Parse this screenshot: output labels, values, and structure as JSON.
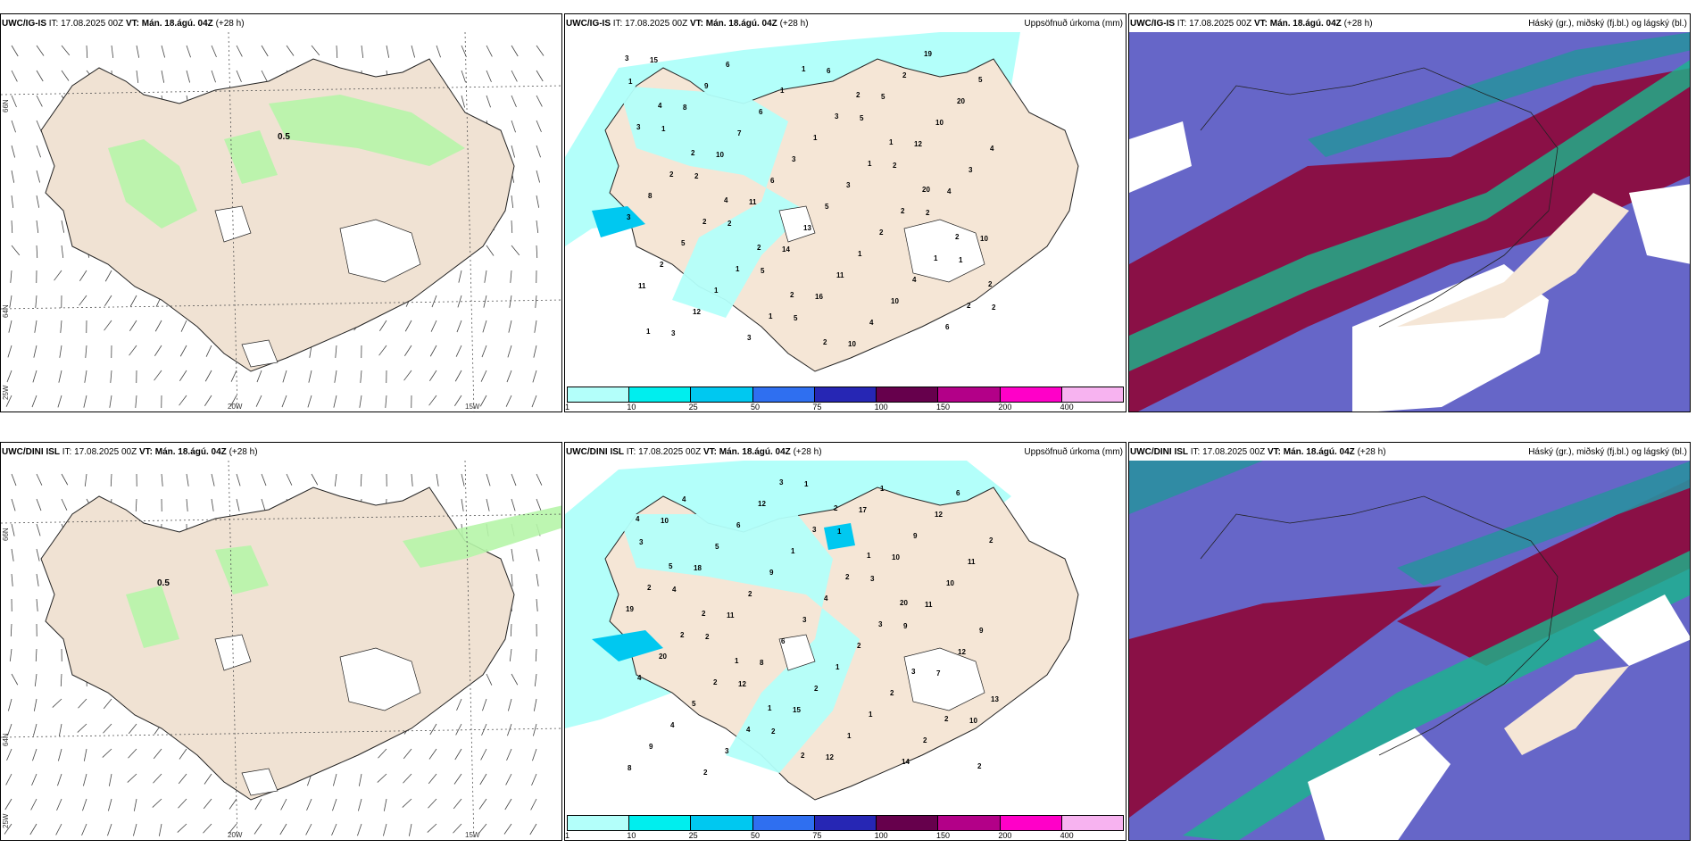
{
  "common": {
    "init": "IT: 17.08.2025 00Z",
    "vt": "VT: Mán. 18.ágú. 04Z",
    "lead": "(+28 h)"
  },
  "panels": [
    {
      "model": "UWC/IG-IS",
      "right_title": "",
      "contour_label": "0.5"
    },
    {
      "model": "UWC/IG-IS",
      "right_title": "Uppsöfnuð úrkoma (mm)"
    },
    {
      "model": "UWC/IG-IS",
      "right_title": "Háský (gr.), miðský (fj.bl.) og lágský (bl.)"
    },
    {
      "model": "UWC/DINI ISL",
      "right_title": "",
      "contour_label": "0.5"
    },
    {
      "model": "UWC/DINI ISL",
      "right_title": "Uppsöfnuð úrkoma (mm)"
    },
    {
      "model": "UWC/DINI ISL",
      "right_title": "Háský (gr.), miðský (fj.bl.) og lágský (bl.)"
    }
  ],
  "axes": {
    "lon": [
      "20W",
      "15W"
    ],
    "lat_top": "66N",
    "lat_mid": "64N",
    "lon_left": "25W"
  },
  "colorbar": {
    "labels": [
      "1",
      "10",
      "25",
      "50",
      "75",
      "100",
      "150",
      "200",
      "400"
    ],
    "colors": [
      "#b3fffa",
      "#00eeee",
      "#00c8f0",
      "#2f6ff0",
      "#2626b4",
      "#66004c",
      "#b30088",
      "#ff00c8",
      "#f7b3f0"
    ]
  },
  "precip_top": [
    "1",
    "1",
    "2",
    "2",
    "5",
    "5",
    "6",
    "5",
    "2",
    "2",
    "1",
    "2",
    "15",
    "8",
    "10",
    "11",
    "14",
    "16",
    "10",
    "5",
    "12",
    "4",
    "10",
    "11",
    "3",
    "9",
    "7",
    "6",
    "13",
    "11",
    "4",
    "2",
    "10",
    "3",
    "3",
    "2",
    "12",
    "6",
    "6",
    "3",
    "5",
    "1",
    "10",
    "19",
    "20",
    "4",
    "8",
    "5",
    "1",
    "3",
    "1",
    "1",
    "3",
    "2",
    "4",
    "6",
    "5",
    "3",
    "2",
    "2",
    "1",
    "1",
    "1",
    "3",
    "1",
    "2",
    "1",
    "2",
    "3",
    "4",
    "2",
    "4",
    "2",
    "2",
    "2",
    "2",
    "1",
    "20",
    "2",
    "2",
    "1"
  ],
  "precip_bottom": [
    "3",
    "4",
    "2",
    "12",
    "2",
    "1",
    "1",
    "3",
    "9",
    "7",
    "10",
    "8",
    "10",
    "18",
    "11",
    "8",
    "15",
    "12",
    "17",
    "10",
    "11",
    "12",
    "13",
    "9",
    "4",
    "5",
    "2",
    "6",
    "2",
    "1",
    "1",
    "9",
    "10",
    "9",
    "4",
    "4",
    "2",
    "6",
    "9",
    "3",
    "1",
    "1",
    "14",
    "12",
    "11",
    "19",
    "20",
    "5",
    "3",
    "12",
    "1",
    "4",
    "2",
    "2",
    "2",
    "6",
    "2",
    "2",
    "2",
    "2",
    "4",
    "3",
    "3",
    "2",
    "3",
    "3",
    "2",
    "2",
    "4",
    "5",
    "2",
    "1",
    "1",
    "2",
    "2",
    "1",
    "20"
  ]
}
